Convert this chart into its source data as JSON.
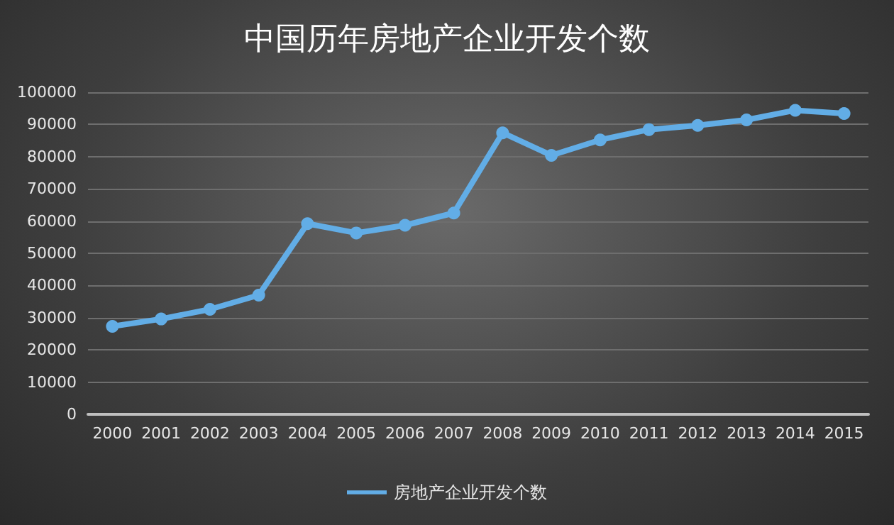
{
  "chart_data": {
    "type": "line",
    "title": "中国历年房地产企业开发个数",
    "categories": [
      "2000",
      "2001",
      "2002",
      "2003",
      "2004",
      "2005",
      "2006",
      "2007",
      "2008",
      "2009",
      "2010",
      "2011",
      "2012",
      "2013",
      "2014",
      "2015"
    ],
    "series": [
      {
        "name": "房地产企业开发个数",
        "color": "#62ade6",
        "values": [
          27300,
          29600,
          32600,
          37000,
          59200,
          56300,
          58700,
          62500,
          87400,
          80400,
          85200,
          88400,
          89700,
          91400,
          94400,
          93400
        ]
      }
    ],
    "ylim": [
      0,
      100000
    ],
    "yticks": [
      0,
      10000,
      20000,
      30000,
      40000,
      50000,
      60000,
      70000,
      80000,
      90000,
      100000
    ],
    "grid": "y",
    "legend": "bottom",
    "marker": "circle",
    "line_style": "solid"
  }
}
